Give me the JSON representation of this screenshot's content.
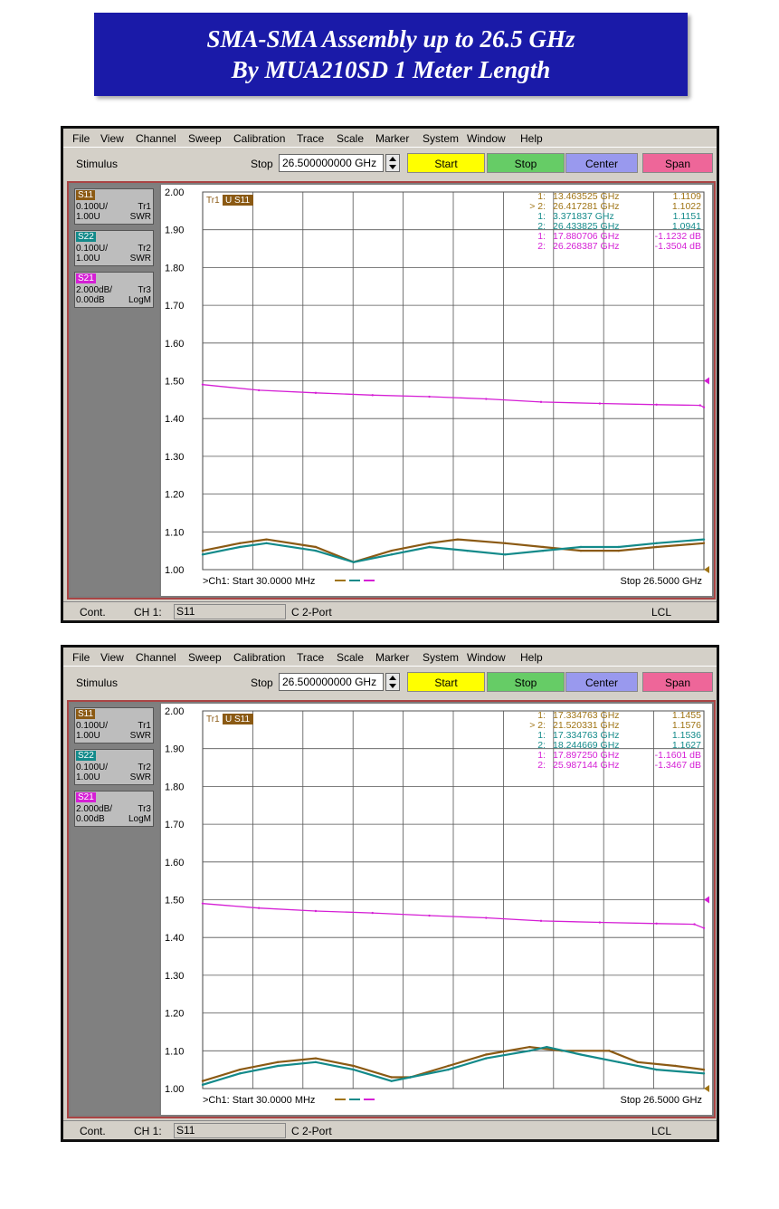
{
  "banner": {
    "line1": "SMA-SMA Assembly up to 26.5 GHz",
    "line2": "By MUA210SD 1 Meter Length",
    "color": "#1a1aa8"
  },
  "panels": [
    {
      "menu": [
        "File",
        "View",
        "Channel",
        "Sweep",
        "Calibration",
        "Trace",
        "Scale",
        "Marker",
        "System",
        "Window",
        "Help"
      ],
      "stimulus_label": "Stimulus",
      "stop_label": "Stop",
      "stop_value": "26.500000000 GHz",
      "buttons": {
        "start": "Start",
        "stop": "Stop",
        "center": "Center",
        "span": "Span"
      },
      "traces": [
        {
          "name": "S11",
          "scale": "0.100U/",
          "tr": "Tr1",
          "ref": "1.00U",
          "format": "SWR",
          "color": "#8b5a14"
        },
        {
          "name": "S22",
          "scale": "0.100U/",
          "tr": "Tr2",
          "ref": "1.00U",
          "format": "SWR",
          "color": "#138a8a"
        },
        {
          "name": "S21",
          "scale": "2.000dB/",
          "tr": "Tr3",
          "ref": "0.00dB",
          "format": "LogM",
          "color": "#d51fd5"
        }
      ],
      "active_trace_prefix": "Tr1",
      "active_trace_label": "U S11",
      "y_ticks": [
        "2.00",
        "1.90",
        "1.80",
        "1.70",
        "1.60",
        "1.50",
        "1.40",
        "1.30",
        "1.20",
        "1.10",
        "1.00"
      ],
      "markers": [
        {
          "idx": "1:",
          "freq": "13.463525 GHz",
          "val": "1.1109",
          "color": "#a07414"
        },
        {
          "idx": "> 2:",
          "freq": "26.417281 GHz",
          "val": "1.1022",
          "color": "#a07414"
        },
        {
          "idx": "1:",
          "freq": "3.371837 GHz",
          "val": "1.1151",
          "color": "#138a8a"
        },
        {
          "idx": "2:",
          "freq": "26.433825 GHz",
          "val": "1.0941",
          "color": "#138a8a"
        },
        {
          "idx": "1:",
          "freq": "17.880706 GHz",
          "val": "-1.1232 dB",
          "color": "#d51fd5"
        },
        {
          "idx": "2:",
          "freq": "26.268387 GHz",
          "val": "-1.3504 dB",
          "color": "#d51fd5"
        }
      ],
      "ch_start": ">Ch1: Start  30.0000 MHz",
      "ch_stop": "Stop  26.5000 GHz",
      "status": {
        "mode": "Cont.",
        "ch": "CH 1:",
        "active": "S11",
        "cal": "C  2-Port",
        "lcl": "LCL"
      },
      "chart_data": {
        "type": "line",
        "xlim": [
          0.03,
          26.5
        ],
        "ylim": [
          1.0,
          2.0
        ],
        "series": [
          {
            "name": "S11",
            "color": "#8b5a14",
            "x": [
              0.03,
              2,
              3.4,
              6,
              8,
              10,
              12,
              13.5,
              16,
              18,
              20,
              22,
              24,
              26.5
            ],
            "y": [
              1.05,
              1.07,
              1.08,
              1.06,
              1.02,
              1.05,
              1.07,
              1.08,
              1.07,
              1.06,
              1.05,
              1.05,
              1.06,
              1.07
            ]
          },
          {
            "name": "S22",
            "color": "#138a8a",
            "x": [
              0.03,
              2,
              3.4,
              6,
              8,
              10,
              12,
              14,
              16,
              18,
              20,
              22,
              24,
              26.5
            ],
            "y": [
              1.04,
              1.06,
              1.07,
              1.05,
              1.02,
              1.04,
              1.06,
              1.05,
              1.04,
              1.05,
              1.06,
              1.06,
              1.07,
              1.08
            ]
          },
          {
            "name": "S21",
            "color": "#d51fd5",
            "x": [
              0.03,
              3,
              6,
              9,
              12,
              15,
              17.9,
              21,
              24,
              26.3,
              26.5
            ],
            "y": [
              1.49,
              1.475,
              1.468,
              1.462,
              1.458,
              1.452,
              1.444,
              1.44,
              1.437,
              1.435,
              1.43
            ]
          }
        ]
      }
    },
    {
      "menu": [
        "File",
        "View",
        "Channel",
        "Sweep",
        "Calibration",
        "Trace",
        "Scale",
        "Marker",
        "System",
        "Window",
        "Help"
      ],
      "stimulus_label": "Stimulus",
      "stop_label": "Stop",
      "stop_value": "26.500000000 GHz",
      "buttons": {
        "start": "Start",
        "stop": "Stop",
        "center": "Center",
        "span": "Span"
      },
      "traces": [
        {
          "name": "S11",
          "scale": "0.100U/",
          "tr": "Tr1",
          "ref": "1.00U",
          "format": "SWR",
          "color": "#8b5a14"
        },
        {
          "name": "S22",
          "scale": "0.100U/",
          "tr": "Tr2",
          "ref": "1.00U",
          "format": "SWR",
          "color": "#138a8a"
        },
        {
          "name": "S21",
          "scale": "2.000dB/",
          "tr": "Tr3",
          "ref": "0.00dB",
          "format": "LogM",
          "color": "#d51fd5"
        }
      ],
      "active_trace_prefix": "Tr1",
      "active_trace_label": "U S11",
      "y_ticks": [
        "2.00",
        "1.90",
        "1.80",
        "1.70",
        "1.60",
        "1.50",
        "1.40",
        "1.30",
        "1.20",
        "1.10",
        "1.00"
      ],
      "markers": [
        {
          "idx": "1:",
          "freq": "17.334763 GHz",
          "val": "1.1455",
          "color": "#a07414"
        },
        {
          "idx": "> 2:",
          "freq": "21.520331 GHz",
          "val": "1.1576",
          "color": "#a07414"
        },
        {
          "idx": "1:",
          "freq": "17.334763 GHz",
          "val": "1.1536",
          "color": "#138a8a"
        },
        {
          "idx": "2:",
          "freq": "18.244669 GHz",
          "val": "1.1627",
          "color": "#138a8a"
        },
        {
          "idx": "1:",
          "freq": "17.897250 GHz",
          "val": "-1.1601 dB",
          "color": "#d51fd5"
        },
        {
          "idx": "2:",
          "freq": "25.987144 GHz",
          "val": "-1.3467 dB",
          "color": "#d51fd5"
        }
      ],
      "ch_start": ">Ch1: Start  30.0000 MHz",
      "ch_stop": "Stop  26.5000 GHz",
      "status": {
        "mode": "Cont.",
        "ch": "CH 1:",
        "active": "S11",
        "cal": "C  2-Port",
        "lcl": "LCL"
      },
      "chart_data": {
        "type": "line",
        "xlim": [
          0.03,
          26.5
        ],
        "ylim": [
          1.0,
          2.0
        ],
        "series": [
          {
            "name": "S11",
            "color": "#8b5a14",
            "x": [
              0.03,
              2,
              4,
              6,
              8,
              10,
              11,
              13,
              15,
              17.3,
              19,
              21.5,
              23,
              25,
              26.5
            ],
            "y": [
              1.02,
              1.05,
              1.07,
              1.08,
              1.06,
              1.03,
              1.03,
              1.06,
              1.09,
              1.11,
              1.1,
              1.1,
              1.07,
              1.06,
              1.05
            ]
          },
          {
            "name": "S22",
            "color": "#138a8a",
            "x": [
              0.03,
              2,
              4,
              6,
              8,
              10,
              11,
              13,
              15,
              17.3,
              18.2,
              20,
              22,
              24,
              26.5
            ],
            "y": [
              1.01,
              1.04,
              1.06,
              1.07,
              1.05,
              1.02,
              1.03,
              1.05,
              1.08,
              1.1,
              1.11,
              1.09,
              1.07,
              1.05,
              1.04
            ]
          },
          {
            "name": "S21",
            "color": "#d51fd5",
            "x": [
              0.03,
              3,
              6,
              9,
              12,
              15,
              17.9,
              21,
              24,
              26,
              26.5
            ],
            "y": [
              1.49,
              1.478,
              1.47,
              1.465,
              1.458,
              1.452,
              1.444,
              1.44,
              1.437,
              1.435,
              1.425
            ]
          }
        ]
      }
    }
  ]
}
